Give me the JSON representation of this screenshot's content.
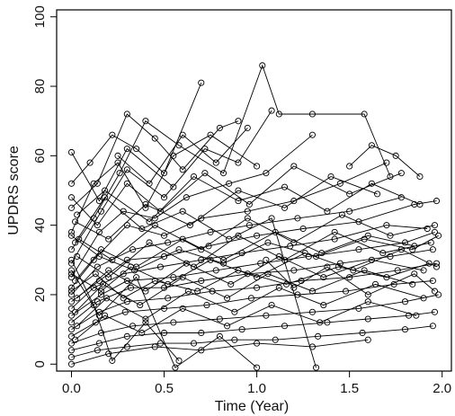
{
  "chart_data": {
    "type": "line",
    "title": "",
    "xlabel": "Time (Year)",
    "ylabel": "UPDRS score",
    "xlim": [
      -0.08,
      2.05
    ],
    "ylim": [
      -2,
      102
    ],
    "xticks": [
      0.0,
      0.5,
      1.0,
      1.5,
      2.0
    ],
    "xtick_labels": [
      "0.0",
      "0.5",
      "1.0",
      "1.5",
      "2.0"
    ],
    "yticks": [
      0,
      20,
      40,
      60,
      80,
      100
    ],
    "ytick_labels": [
      "0",
      "20",
      "40",
      "60",
      "80",
      "100"
    ],
    "grid": false,
    "legend": "none",
    "marker": "open-circle",
    "line_color": "#000000",
    "series": [
      {
        "x": [
          0.0,
          0.15,
          0.3,
          0.55
        ],
        "y": [
          61,
          47,
          62,
          51
        ]
      },
      {
        "x": [
          0.0,
          0.12,
          0.25,
          0.4,
          0.55,
          0.75,
          1.0
        ],
        "y": [
          38,
          52,
          58,
          45,
          60,
          66,
          57
        ]
      },
      {
        "x": [
          0.0,
          0.1,
          0.22,
          0.35,
          0.5,
          0.7
        ],
        "y": [
          52,
          58,
          66,
          62,
          55,
          81
        ]
      },
      {
        "x": [
          0.0,
          0.14,
          0.3,
          0.45,
          0.6,
          0.8,
          0.9
        ],
        "y": [
          45,
          52,
          72,
          65,
          56,
          68,
          70
        ]
      },
      {
        "x": [
          0.0,
          0.12,
          0.26,
          0.4,
          0.58,
          0.82,
          1.03,
          1.12,
          1.3,
          1.58,
          1.72
        ],
        "y": [
          33,
          42,
          55,
          70,
          63,
          55,
          86,
          72,
          72,
          72,
          54
        ]
      },
      {
        "x": [
          0.0,
          0.16,
          0.3,
          0.5,
          0.72,
          0.9,
          1.08
        ],
        "y": [
          29,
          44,
          56,
          48,
          62,
          58,
          73
        ]
      },
      {
        "x": [
          0.0,
          0.15,
          0.28,
          0.45,
          0.62,
          0.85,
          1.05,
          1.3
        ],
        "y": [
          25,
          38,
          44,
          42,
          48,
          52,
          55,
          66
        ]
      },
      {
        "x": [
          0.0,
          0.12,
          0.3,
          0.5,
          0.7,
          0.95,
          1.2,
          1.45,
          1.7
        ],
        "y": [
          22,
          30,
          40,
          37,
          42,
          44,
          47,
          52,
          58
        ]
      },
      {
        "x": [
          0.0,
          0.14,
          0.33,
          0.52,
          0.75,
          0.96,
          1.22,
          1.5,
          1.78
        ],
        "y": [
          20,
          28,
          33,
          35,
          38,
          40,
          42,
          44,
          48
        ]
      },
      {
        "x": [
          0.0,
          0.15,
          0.3,
          0.5,
          0.74,
          1.0,
          1.25,
          1.55,
          1.85,
          1.97
        ],
        "y": [
          18,
          24,
          30,
          31,
          34,
          37,
          39,
          41,
          46,
          47
        ]
      },
      {
        "x": [
          0.0,
          0.12,
          0.28,
          0.48,
          0.7,
          0.92,
          1.18,
          1.42,
          1.7,
          1.92
        ],
        "y": [
          16,
          22,
          26,
          28,
          30,
          32,
          34,
          36,
          40,
          39
        ]
      },
      {
        "x": [
          0.0,
          0.16,
          0.3,
          0.55,
          0.78,
          1.02,
          1.28,
          1.55,
          1.8,
          1.96
        ],
        "y": [
          14,
          20,
          24,
          25,
          27,
          29,
          31,
          33,
          35,
          38
        ]
      },
      {
        "x": [
          0.0,
          0.14,
          0.32,
          0.5,
          0.7,
          0.95,
          1.2,
          1.45,
          1.72,
          1.95
        ],
        "y": [
          12,
          18,
          22,
          22,
          24,
          26,
          27,
          29,
          31,
          33
        ]
      },
      {
        "x": [
          0.0,
          0.15,
          0.3,
          0.52,
          0.76,
          1.0,
          1.24,
          1.5,
          1.76,
          1.97
        ],
        "y": [
          10,
          15,
          18,
          19,
          21,
          22,
          24,
          25,
          27,
          29
        ]
      },
      {
        "x": [
          0.0,
          0.13,
          0.29,
          0.5,
          0.73,
          0.97,
          1.22,
          1.48,
          1.74,
          1.95
        ],
        "y": [
          8,
          12,
          15,
          16,
          17,
          19,
          20,
          21,
          23,
          24
        ]
      },
      {
        "x": [
          0.0,
          0.16,
          0.33,
          0.55,
          0.8,
          1.05,
          1.3,
          1.55,
          1.8,
          1.98
        ],
        "y": [
          6,
          9,
          11,
          12,
          13,
          14,
          15,
          16,
          18,
          20
        ]
      },
      {
        "x": [
          0.0,
          0.15,
          0.3,
          0.5,
          0.7,
          0.92,
          1.15,
          1.38,
          1.6,
          1.82,
          1.96
        ],
        "y": [
          4,
          6,
          8,
          9,
          9,
          10,
          11,
          12,
          13,
          14,
          15
        ]
      },
      {
        "x": [
          0.0,
          0.14,
          0.3,
          0.48,
          0.66,
          0.88,
          1.1,
          1.33,
          1.57,
          1.8,
          1.95
        ],
        "y": [
          2,
          4,
          5,
          6,
          6,
          7,
          7,
          8,
          9,
          10,
          11
        ]
      },
      {
        "x": [
          0.0,
          0.2,
          0.45,
          0.7,
          1.0,
          1.3,
          1.6
        ],
        "y": [
          0,
          3,
          5,
          4,
          6,
          5,
          7
        ]
      },
      {
        "x": [
          0.0,
          0.12,
          0.22,
          0.4,
          0.58
        ],
        "y": [
          30,
          17,
          1,
          12,
          1
        ]
      },
      {
        "x": [
          0.0,
          0.15,
          0.35,
          0.56,
          0.8,
          1.0
        ],
        "y": [
          27,
          14,
          25,
          -1,
          8,
          -1
        ]
      },
      {
        "x": [
          0.02,
          0.18,
          0.38,
          0.6,
          0.85,
          1.08,
          1.32
        ],
        "y": [
          35,
          48,
          39,
          44,
          36,
          42,
          -1
        ]
      },
      {
        "x": [
          0.02,
          0.2,
          0.4,
          0.64,
          0.9,
          1.15,
          1.4,
          1.65
        ],
        "y": [
          41,
          36,
          46,
          40,
          50,
          45,
          54,
          49
        ]
      },
      {
        "x": [
          0.03,
          0.18,
          0.42,
          0.66,
          0.9,
          1.15,
          1.38,
          1.62,
          1.88
        ],
        "y": [
          43,
          50,
          41,
          54,
          47,
          51,
          44,
          52,
          46
        ]
      },
      {
        "x": [
          0.02,
          0.16,
          0.35,
          0.6,
          0.82,
          1.1,
          1.35,
          1.6,
          1.85
        ],
        "y": [
          24,
          33,
          28,
          36,
          30,
          38,
          32,
          37,
          34
        ]
      },
      {
        "x": [
          0.03,
          0.2,
          0.4,
          0.62,
          0.86,
          1.12,
          1.36,
          1.62,
          1.9
        ],
        "y": [
          19,
          27,
          21,
          29,
          23,
          31,
          25,
          30,
          27
        ]
      },
      {
        "x": [
          0.02,
          0.17,
          0.37,
          0.6,
          0.84,
          1.06,
          1.3,
          1.58,
          1.84
        ],
        "y": [
          15,
          23,
          17,
          25,
          19,
          26,
          21,
          27,
          23
        ]
      },
      {
        "x": [
          0.03,
          0.19,
          0.4,
          0.63,
          0.88,
          1.12,
          1.36,
          1.64,
          1.9
        ],
        "y": [
          11,
          19,
          13,
          21,
          15,
          22,
          17,
          23,
          19
        ]
      },
      {
        "x": [
          0.02,
          0.18,
          0.38,
          0.6,
          0.84,
          1.08,
          1.34,
          1.6,
          1.86
        ],
        "y": [
          7,
          14,
          9,
          16,
          11,
          17,
          12,
          18,
          14
        ]
      },
      {
        "x": [
          0.04,
          0.22,
          0.45,
          0.7,
          0.95,
          1.2,
          1.46,
          1.72,
          1.96
        ],
        "y": [
          36,
          30,
          40,
          33,
          42,
          35,
          43,
          37,
          40
        ]
      },
      {
        "x": [
          0.03,
          0.2,
          0.42,
          0.66,
          0.9,
          1.15,
          1.42,
          1.68,
          1.94
        ],
        "y": [
          31,
          25,
          35,
          28,
          37,
          30,
          38,
          32,
          35
        ]
      },
      {
        "x": [
          0.0,
          0.14,
          0.3,
          0.48,
          0.72,
          0.96,
          1.2,
          1.5,
          1.78
        ],
        "y": [
          48,
          40,
          52,
          44,
          55,
          46,
          57,
          49,
          55
        ]
      },
      {
        "x": [
          0.0,
          0.15,
          0.34,
          0.58,
          0.82,
          1.06,
          1.32,
          1.58,
          1.84,
          1.98
        ],
        "y": [
          37,
          31,
          27,
          33,
          29,
          35,
          31,
          36,
          33,
          37
        ]
      },
      {
        "x": [
          0.0,
          0.13,
          0.28,
          0.45,
          0.68,
          0.9,
          1.16,
          1.44,
          1.7,
          1.93
        ],
        "y": [
          21,
          26,
          19,
          24,
          21,
          27,
          23,
          28,
          25,
          29
        ]
      },
      {
        "x": [
          0.0,
          0.16,
          0.32,
          0.52,
          0.75,
          1.0,
          1.26,
          1.52,
          1.78,
          1.97
        ],
        "y": [
          26,
          21,
          28,
          23,
          30,
          25,
          32,
          27,
          33,
          28
        ]
      },
      {
        "x": [
          1.05,
          1.2,
          1.38,
          1.6,
          1.85,
          1.96
        ],
        "y": [
          30,
          22,
          28,
          20,
          26,
          21
        ]
      },
      {
        "x": [
          0.25,
          0.42,
          0.6,
          0.78,
          0.95
        ],
        "y": [
          60,
          52,
          66,
          58,
          68
        ]
      },
      {
        "x": [
          1.5,
          1.62,
          1.75,
          1.88
        ],
        "y": [
          57,
          63,
          60,
          54
        ]
      }
    ]
  }
}
